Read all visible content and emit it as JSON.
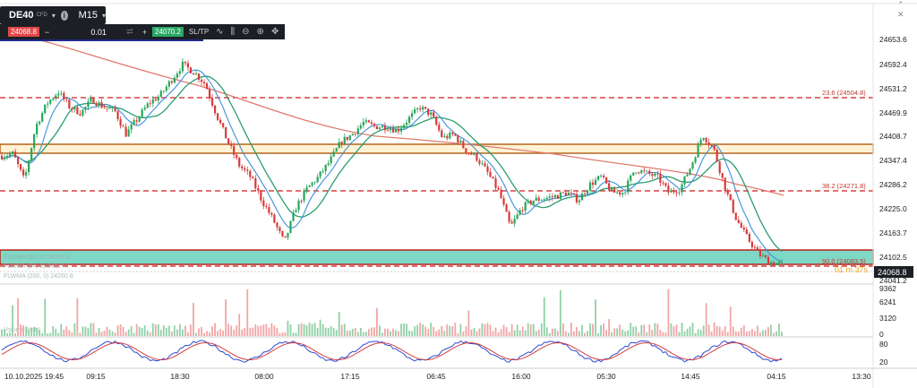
{
  "symbol": "DE40",
  "symbol_type": "CFD",
  "timeframe": "M15",
  "trade": {
    "sell_price": "24068.8",
    "quantity": "0.01",
    "buy_price": "24070.2",
    "sl_tp_label": "SL/TP"
  },
  "price_axis": {
    "labels": [
      "24653.6",
      "24592.4",
      "24531.2",
      "24469.9",
      "24408.7",
      "24347.4",
      "24286.2",
      "24225.0",
      "24163.7",
      "24102.5",
      "24041.2"
    ],
    "current_price": "24068.8"
  },
  "volume_axis": {
    "labels": [
      "9362",
      "6241",
      "3120",
      "0"
    ]
  },
  "stoch_axis": {
    "labels": [
      "80",
      "20"
    ]
  },
  "time_axis": {
    "labels": [
      "10.10.2025 19:45",
      "09:15",
      "18:30",
      "08:00",
      "17:15",
      "06:45",
      "16:00",
      "05:30",
      "14:45",
      "04:15",
      "13:30"
    ]
  },
  "fib_labels": [
    "23.6 (24504.8)",
    "38.2 (24271.8)",
    "50.0 (24083.5)"
  ],
  "overlay_labels": [
    "FLWMA (50, 0) 24097.4",
    "FLWMA (24, 0) 24127.7",
    "FLWMA (200, 0) 24260.8"
  ],
  "indicator_title": "Volume (tick)",
  "colors": {
    "candle_up": "#26a65b",
    "candle_down": "#d63b3b",
    "fib_line": "#d11a1a",
    "ma_fast": "#3d8fd9",
    "ma_mid": "#2a9d70",
    "ma_slow": "#e07a6e",
    "zone_fill": "#7fd8c6",
    "resistance_fill": "#fff3d6"
  },
  "chart_data": {
    "type": "candlestick",
    "ylim": [
      24030,
      24700
    ],
    "series": [
      {
        "name": "FLWMA (24, 0)",
        "type": "line"
      },
      {
        "name": "FLWMA (50, 0)",
        "type": "line"
      },
      {
        "name": "FLWMA (200, 0)",
        "type": "line"
      }
    ],
    "close_path": [
      24345,
      24350,
      24280,
      24420,
      24480,
      24510,
      24470,
      24455,
      24490,
      24470,
      24460,
      24400,
      24440,
      24480,
      24500,
      24540,
      24580,
      24560,
      24530,
      24450,
      24380,
      24320,
      24290,
      24230,
      24180,
      24120,
      24210,
      24260,
      24290,
      24330,
      24380,
      24400,
      24430,
      24420,
      24420,
      24410,
      24440,
      24470,
      24450,
      24390,
      24400,
      24360,
      24340,
      24300,
      24250,
      24160,
      24210,
      24230,
      24235,
      24240,
      24250,
      24230,
      24270,
      24290,
      24250,
      24250,
      24310,
      24300,
      24290,
      24250,
      24260,
      24320,
      24400,
      24360,
      24260,
      24180,
      24130,
      24090,
      24070,
      24065
    ]
  }
}
